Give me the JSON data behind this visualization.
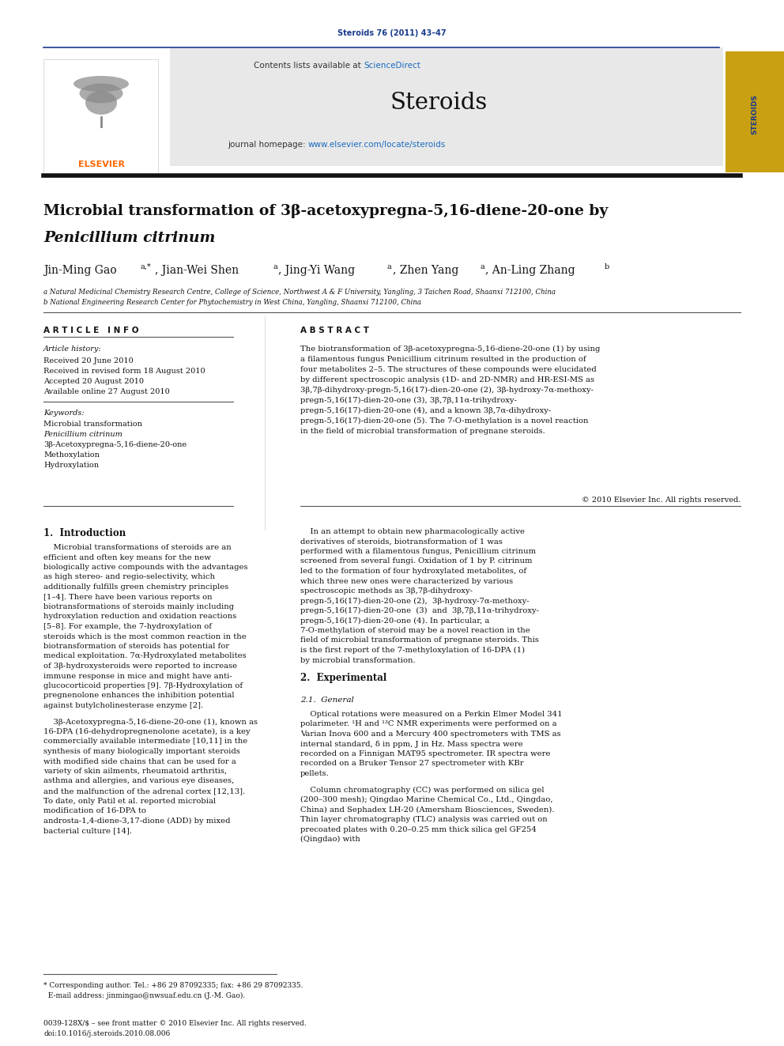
{
  "page_width": 9.92,
  "page_height": 13.23,
  "bg_color": "#ffffff",
  "header_journal_ref": "Steroids 76 (2011) 43–47",
  "header_journal_ref_color": "#1a3a8c",
  "journal_header_bg": "#e8e8e8",
  "journal_name": "Steroids",
  "contents_line_plain": "Contents lists available at ",
  "contents_line_link": "ScienceDirect",
  "science_direct_color": "#1a6bbf",
  "journal_url_plain": "journal homepage: ",
  "journal_url_link": "www.elsevier.com/locate/steroids",
  "link_color": "#1a6bbf",
  "title_line1": "Microbial transformation of 3β-acetoxypregna-5,16-diene-20-one by",
  "title_line2": "Penicillium citrinum",
  "authors_plain": "Jin-Ming Gao",
  "authors_super1": "a,*",
  "authors_rest": ", Jian-Wei Shen",
  "authors_super2": "a",
  "authors_rest2": ", Jing-Yi Wang",
  "authors_super3": "a",
  "authors_rest3": ", Zhen Yang",
  "authors_super4": "a",
  "authors_rest4": ", An-Ling Zhang",
  "authors_super5": "b",
  "affil_a": "a Natural Medicinal Chemistry Research Centre, College of Science, Northwest A & F University, Yangling, 3 Taichen Road, Shaanxi 712100, China",
  "affil_b": "b National Engineering Research Center for Phytochemistry in West China, Yangling, Shaanxi 712100, China",
  "article_history_label": "Article history:",
  "received": "Received 20 June 2010",
  "received_revised": "Received in revised form 18 August 2010",
  "accepted": "Accepted 20 August 2010",
  "available": "Available online 27 August 2010",
  "keywords_label": "Keywords:",
  "keyword1": "Microbial transformation",
  "keyword2": "Penicillium citrinum",
  "keyword3": "3β-Acetoxypregna-5,16-diene-20-one",
  "keyword4": "Methoxylation",
  "keyword5": "Hydroxylation",
  "abstract_text": "The biotransformation of 3β-acetoxypregna-5,16-diene-20-one (1) by using a filamentous fungus Penicillium citrinum resulted in the production of four metabolites 2–5. The structures of these compounds were elucidated by different spectroscopic analysis (1D- and 2D-NMR) and HR-ESI-MS as 3β,7β-dihydroxy-pregn-5,16(17)-dien-20-one (2), 3β-hydroxy-7α-methoxy-pregn-5,16(17)-dien-20-one (3), 3β,7β,11α-trihydroxy-pregn-5,16(17)-dien-20-one (4), and a known 3β,7α-dihydroxy-pregn-5,16(17)-dien-20-one (5). The 7-O-methylation is a novel reaction in the field of microbial transformation of pregnane steroids.",
  "copyright": "© 2010 Elsevier Inc. All rights reserved.",
  "intro_heading": "1.  Introduction",
  "intro_text1": "Microbial transformations of steroids are an efficient and often key means for the new biologically active compounds with the advantages as high stereo- and regio-selectivity, which additionally fulfills green chemistry principles [1–4]. There have been various reports on biotransformations of steroids mainly including hydroxylation reduction and oxidation reactions [5–8]. For example, the 7-hydroxylation of steroids which is the most common reaction in the biotransformation of steroids has potential for medical exploitation. 7α-Hydroxylated metabolites of 3β-hydroxysteroids were reported to increase immune response in mice and might have anti-glucocorticoid properties [9]. 7β-Hydroxylation of pregnenolone enhances the inhibition potential against butylcholinesterase enzyme [2].",
  "intro_text2": "3β-Acetoxypregna-5,16-diene-20-one (1), known as 16-DPA (16-dehydropregnenolone acetate), is a key commercially available intermediate [10,11] in the synthesis of many biologically important steroids with modified side chains that can be used for a variety of skin ailments, rheumatoid arthritis, asthma and allergies, and various eye diseases, and the malfunction of the adrenal cortex [12,13]. To date, only Patil et al. reported microbial modification of 16-DPA to androsta-1,4-diene-3,17-dione (ADD) by mixed bacterial culture [14].",
  "right_col_text1": "In an attempt to obtain new pharmacologically active derivatives of steroids, biotransformation of 1 was performed with a filamentous fungus, Penicillium citrinum screened from several fungi. Oxidation of 1 by P. citrinum led to the formation of four hydroxylated metabolites, of which three new ones were characterized by various spectroscopic methods as 3β,7β-dihydroxy-pregn-5,16(17)-dien-20-one (2),  3β-hydroxy-7α-methoxy-pregn-5,16(17)-dien-20-one  (3)  and  3β,7β,11α-trihydroxy-pregn-5,16(17)-dien-20-one (4). In particular, a 7-O-methylation of steroid may be a novel reaction in the field of microbial transformation of pregnane steroids. This is the first report of the 7-methyloxylation of 16-DPA (1) by microbial transformation.",
  "exp_heading": "2.  Experimental",
  "exp_subheading": "2.1.  General",
  "exp_text1": "Optical rotations were measured on a Perkin Elmer Model 341 polarimeter. ¹H and ¹³C NMR experiments were performed on a Varian Inova 600 and a Mercury 400 spectrometers with TMS as internal standard, δ in ppm, J in Hz. Mass spectra were recorded on a Finnigan MAT95 spectrometer. IR spectra were recorded on a Bruker Tensor 27 spectrometer with KBr pellets.",
  "exp_text2": "Column chromatography (CC) was performed on silica gel (200–300 mesh); Qingdao Marine Chemical Co., Ltd., Qingdao, China) and Sephadex LH-20 (Amersham Biosciences, Sweden). Thin layer chromatography (TLC) analysis was carried out on precoated plates with 0.20–0.25 mm thick silica gel GF254 (Qingdao) with",
  "footer_line1": "* Corresponding author. Tel.: +86 29 87092335; fax: +86 29 87092335.",
  "footer_line2": "  E-mail address: jinmingao@nwsuaf.edu.cn (J.-M. Gao).",
  "footer_issn": "0039-128X/$ – see front matter © 2010 Elsevier Inc. All rights reserved.",
  "footer_doi": "doi:10.1016/j.steroids.2010.08.006",
  "top_border_color": "#1a3a8c",
  "thick_border_color": "#111111",
  "thin_line_color": "#555555",
  "elsevier_color": "#ff6600"
}
